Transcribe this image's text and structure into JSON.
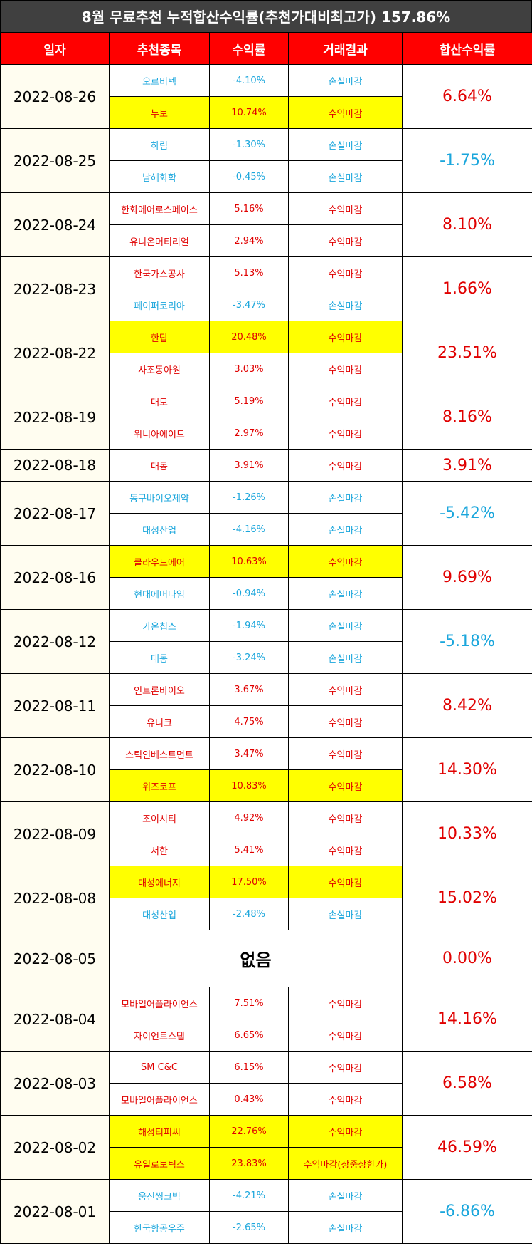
{
  "title": "8월 무료추천 누적합산수익률(추천가대비최고가) 157.86%",
  "headers": [
    "일자",
    "추천종목",
    "수익률",
    "거래결과",
    "합산수익률"
  ],
  "groups": [
    {
      "date": "2022-08-26",
      "cum": "6.64%",
      "cum_sign": "pos",
      "rows": [
        {
          "name": "오르비텍",
          "ret": "-4.10%",
          "result": "손실마감",
          "sign": "neg",
          "hl": false
        },
        {
          "name": "누보",
          "ret": "10.74%",
          "result": "수익마감",
          "sign": "pos",
          "hl": true
        }
      ]
    },
    {
      "date": "2022-08-25",
      "cum": "-1.75%",
      "cum_sign": "neg",
      "rows": [
        {
          "name": "하림",
          "ret": "-1.30%",
          "result": "손실마감",
          "sign": "neg",
          "hl": false
        },
        {
          "name": "남해화학",
          "ret": "-0.45%",
          "result": "손실마감",
          "sign": "neg",
          "hl": false
        }
      ]
    },
    {
      "date": "2022-08-24",
      "cum": "8.10%",
      "cum_sign": "pos",
      "rows": [
        {
          "name": "한화에어로스페이스",
          "ret": "5.16%",
          "result": "수익마감",
          "sign": "pos",
          "hl": false
        },
        {
          "name": "유니온머티리얼",
          "ret": "2.94%",
          "result": "수익마감",
          "sign": "pos",
          "hl": false
        }
      ]
    },
    {
      "date": "2022-08-23",
      "cum": "1.66%",
      "cum_sign": "pos",
      "rows": [
        {
          "name": "한국가스공사",
          "ret": "5.13%",
          "result": "수익마감",
          "sign": "pos",
          "hl": false
        },
        {
          "name": "페이퍼코리아",
          "ret": "-3.47%",
          "result": "손실마감",
          "sign": "neg",
          "hl": false
        }
      ]
    },
    {
      "date": "2022-08-22",
      "cum": "23.51%",
      "cum_sign": "pos",
      "rows": [
        {
          "name": "한탑",
          "ret": "20.48%",
          "result": "수익마감",
          "sign": "pos",
          "hl": true
        },
        {
          "name": "사조동아원",
          "ret": "3.03%",
          "result": "수익마감",
          "sign": "pos",
          "hl": false
        }
      ]
    },
    {
      "date": "2022-08-19",
      "cum": "8.16%",
      "cum_sign": "pos",
      "rows": [
        {
          "name": "대모",
          "ret": "5.19%",
          "result": "수익마감",
          "sign": "pos",
          "hl": false
        },
        {
          "name": "위니아에이드",
          "ret": "2.97%",
          "result": "수익마감",
          "sign": "pos",
          "hl": false
        }
      ]
    },
    {
      "date": "2022-08-18",
      "cum": "3.91%",
      "cum_sign": "pos",
      "rows": [
        {
          "name": "대동",
          "ret": "3.91%",
          "result": "수익마감",
          "sign": "pos",
          "hl": false
        }
      ]
    },
    {
      "date": "2022-08-17",
      "cum": "-5.42%",
      "cum_sign": "neg",
      "rows": [
        {
          "name": "동구바이오제약",
          "ret": "-1.26%",
          "result": "손실마감",
          "sign": "neg",
          "hl": false
        },
        {
          "name": "대성산업",
          "ret": "-4.16%",
          "result": "손실마감",
          "sign": "neg",
          "hl": false
        }
      ]
    },
    {
      "date": "2022-08-16",
      "cum": "9.69%",
      "cum_sign": "pos",
      "rows": [
        {
          "name": "클라우드에어",
          "ret": "10.63%",
          "result": "수익마감",
          "sign": "pos",
          "hl": true
        },
        {
          "name": "현대에버다임",
          "ret": "-0.94%",
          "result": "손실마감",
          "sign": "neg",
          "hl": false
        }
      ]
    },
    {
      "date": "2022-08-12",
      "cum": "-5.18%",
      "cum_sign": "neg",
      "rows": [
        {
          "name": "가온칩스",
          "ret": "-1.94%",
          "result": "손실마감",
          "sign": "neg",
          "hl": false
        },
        {
          "name": "대동",
          "ret": "-3.24%",
          "result": "손실마감",
          "sign": "neg",
          "hl": false
        }
      ]
    },
    {
      "date": "2022-08-11",
      "cum": "8.42%",
      "cum_sign": "pos",
      "rows": [
        {
          "name": "인트론바이오",
          "ret": "3.67%",
          "result": "수익마감",
          "sign": "pos",
          "hl": false
        },
        {
          "name": "유니크",
          "ret": "4.75%",
          "result": "수익마감",
          "sign": "pos",
          "hl": false
        }
      ]
    },
    {
      "date": "2022-08-10",
      "cum": "14.30%",
      "cum_sign": "pos",
      "rows": [
        {
          "name": "스틱인베스트먼트",
          "ret": "3.47%",
          "result": "수익마감",
          "sign": "pos",
          "hl": false
        },
        {
          "name": "위즈코프",
          "ret": "10.83%",
          "result": "수익마감",
          "sign": "pos",
          "hl": true
        }
      ]
    },
    {
      "date": "2022-08-09",
      "cum": "10.33%",
      "cum_sign": "pos",
      "rows": [
        {
          "name": "조이시티",
          "ret": "4.92%",
          "result": "수익마감",
          "sign": "pos",
          "hl": false
        },
        {
          "name": "서한",
          "ret": "5.41%",
          "result": "수익마감",
          "sign": "pos",
          "hl": false
        }
      ]
    },
    {
      "date": "2022-08-08",
      "cum": "15.02%",
      "cum_sign": "pos",
      "rows": [
        {
          "name": "대성에너지",
          "ret": "17.50%",
          "result": "수익마감",
          "sign": "pos",
          "hl": true
        },
        {
          "name": "대성산업",
          "ret": "-2.48%",
          "result": "손실마감",
          "sign": "neg",
          "hl": false
        }
      ]
    },
    {
      "date": "2022-08-05",
      "cum": "0.00%",
      "cum_sign": "pos",
      "none": "없음",
      "rows": []
    },
    {
      "date": "2022-08-04",
      "cum": "14.16%",
      "cum_sign": "pos",
      "rows": [
        {
          "name": "모바일어플라이언스",
          "ret": "7.51%",
          "result": "수익마감",
          "sign": "pos",
          "hl": false
        },
        {
          "name": "자이언트스텝",
          "ret": "6.65%",
          "result": "수익마감",
          "sign": "pos",
          "hl": false
        }
      ]
    },
    {
      "date": "2022-08-03",
      "cum": "6.58%",
      "cum_sign": "pos",
      "rows": [
        {
          "name": "SM C&C",
          "ret": "6.15%",
          "result": "수익마감",
          "sign": "pos",
          "hl": false
        },
        {
          "name": "모바일어플라이언스",
          "ret": "0.43%",
          "result": "수익마감",
          "sign": "pos",
          "hl": false
        }
      ]
    },
    {
      "date": "2022-08-02",
      "cum": "46.59%",
      "cum_sign": "pos",
      "rows": [
        {
          "name": "해성티피씨",
          "ret": "22.76%",
          "result": "수익마감",
          "sign": "pos",
          "hl": true
        },
        {
          "name": "유일로보틱스",
          "ret": "23.83%",
          "result": "수익마감(장중상한가)",
          "sign": "pos",
          "hl": true
        }
      ]
    },
    {
      "date": "2022-08-01",
      "cum": "-6.86%",
      "cum_sign": "neg",
      "rows": [
        {
          "name": "웅진씽크빅",
          "ret": "-4.21%",
          "result": "손실마감",
          "sign": "neg",
          "hl": false
        },
        {
          "name": "한국항공우주",
          "ret": "-2.65%",
          "result": "손실마감",
          "sign": "neg",
          "hl": false
        }
      ]
    }
  ],
  "colors": {
    "title_bg": "#404040",
    "header_bg": "#ff0000",
    "positive": "#e00000",
    "negative": "#1aa6dc",
    "highlight": "#ffff00",
    "date_bg": "#fffdf0"
  }
}
